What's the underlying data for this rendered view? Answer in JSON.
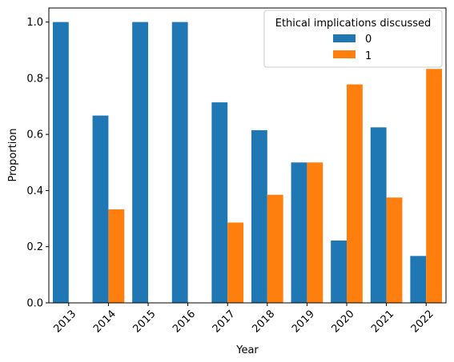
{
  "chart_data": {
    "type": "bar",
    "xlabel": "Year",
    "ylabel": "Proportion",
    "ylim": [
      0,
      1.05
    ],
    "yticks": [
      "0.0",
      "0.2",
      "0.4",
      "0.6",
      "0.8",
      "1.0"
    ],
    "categories": [
      "2013",
      "2014",
      "2015",
      "2016",
      "2017",
      "2018",
      "2019",
      "2020",
      "2021",
      "2022"
    ],
    "legend": {
      "title": "Ethical implications discussed",
      "placement": "top-right"
    },
    "series": [
      {
        "name": "0",
        "color": "#1f77b4",
        "values": [
          1.0,
          0.667,
          1.0,
          1.0,
          0.714,
          0.615,
          0.5,
          0.222,
          0.625,
          0.167
        ]
      },
      {
        "name": "1",
        "color": "#ff7f0e",
        "values": [
          0,
          0.333,
          0,
          0,
          0.286,
          0.385,
          0.5,
          0.778,
          0.375,
          0.833
        ]
      }
    ],
    "grid": false
  }
}
